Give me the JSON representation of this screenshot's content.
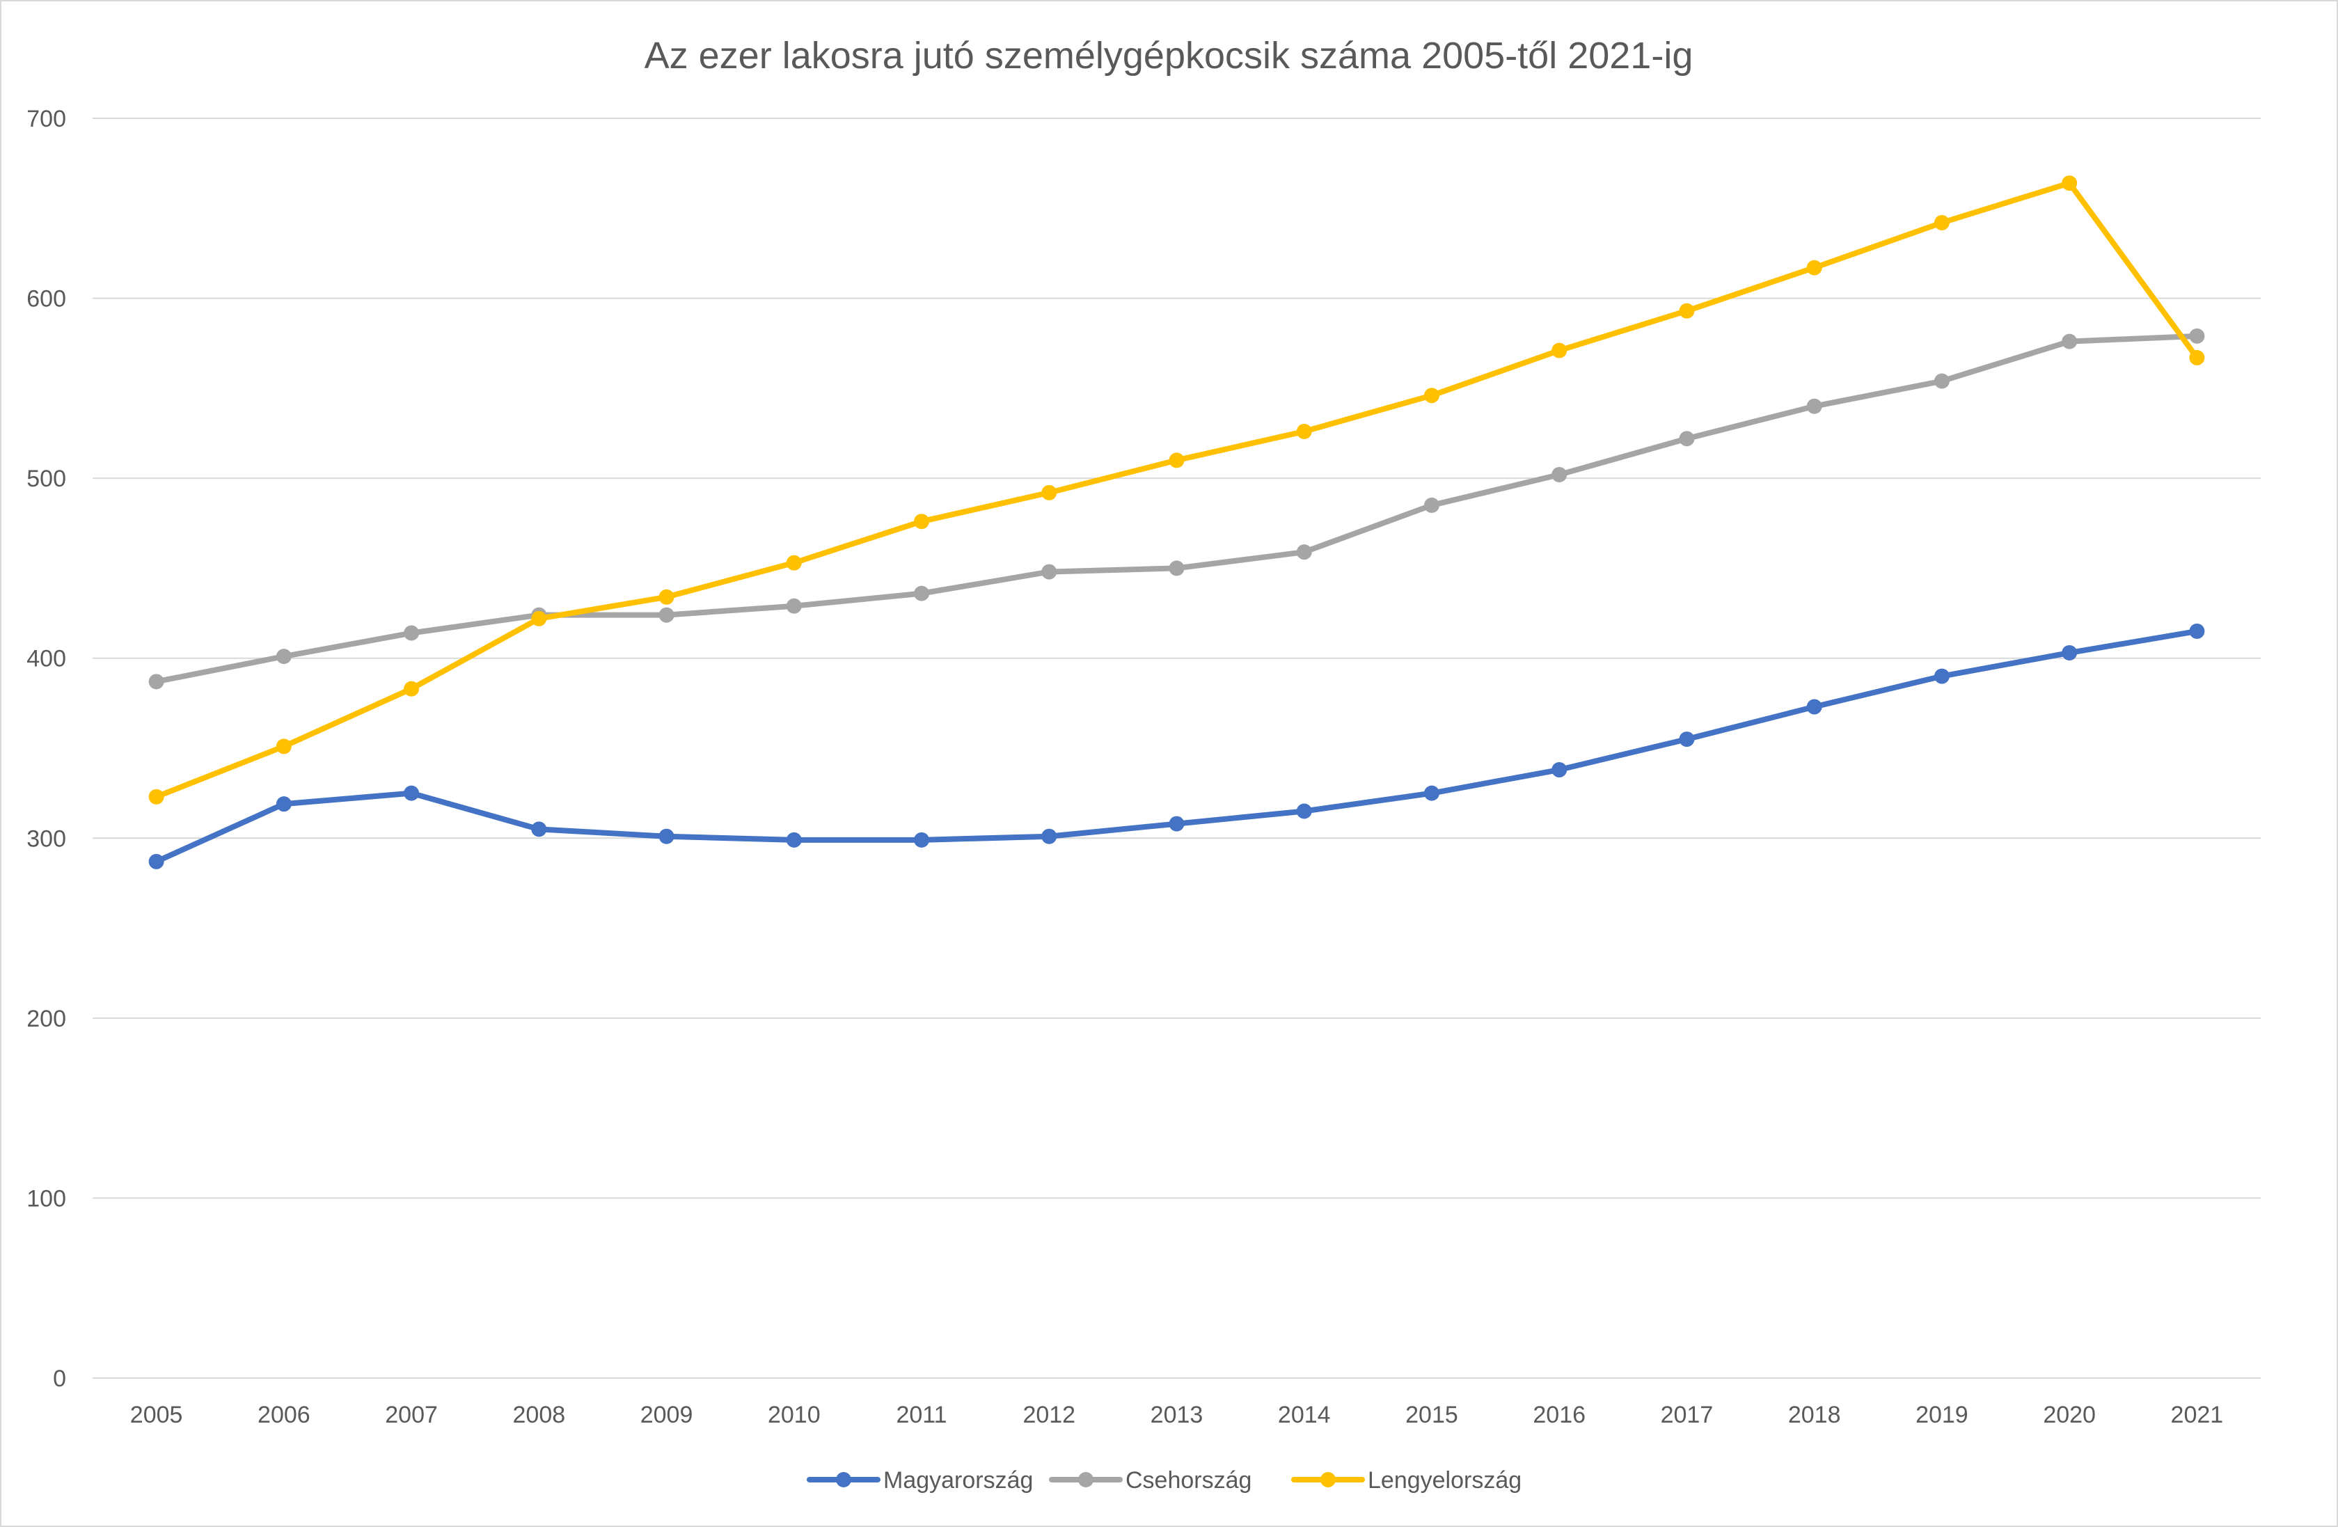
{
  "chart_data": {
    "type": "line",
    "title": "Az ezer lakosra jutó személygépkocsik száma 2005-től 2021-ig",
    "xlabel": "",
    "ylabel": "",
    "ylim": [
      0,
      700
    ],
    "yticks": [
      0,
      100,
      200,
      300,
      400,
      500,
      600,
      700
    ],
    "ytick_labels": [
      "0",
      "100",
      "200",
      "300",
      "400",
      "500",
      "600",
      "700"
    ],
    "grid": true,
    "legend_position": "bottom",
    "categories": [
      "2005",
      "2006",
      "2007",
      "2008",
      "2009",
      "2010",
      "2011",
      "2012",
      "2013",
      "2014",
      "2015",
      "2016",
      "2017",
      "2018",
      "2019",
      "2020",
      "2021"
    ],
    "series": [
      {
        "name": "Magyarország",
        "color": "#4472c4",
        "values": [
          287,
          319,
          325,
          305,
          301,
          299,
          299,
          301,
          308,
          315,
          325,
          338,
          355,
          373,
          390,
          403,
          415
        ]
      },
      {
        "name": "Csehország",
        "color": "#a5a5a5",
        "values": [
          387,
          401,
          414,
          424,
          424,
          429,
          436,
          448,
          450,
          459,
          485,
          502,
          522,
          540,
          554,
          576,
          579
        ]
      },
      {
        "name": "Lengyelország",
        "color": "#ffc000",
        "values": [
          323,
          351,
          383,
          422,
          434,
          453,
          476,
          492,
          510,
          526,
          546,
          571,
          593,
          617,
          642,
          664,
          567
        ]
      }
    ]
  }
}
